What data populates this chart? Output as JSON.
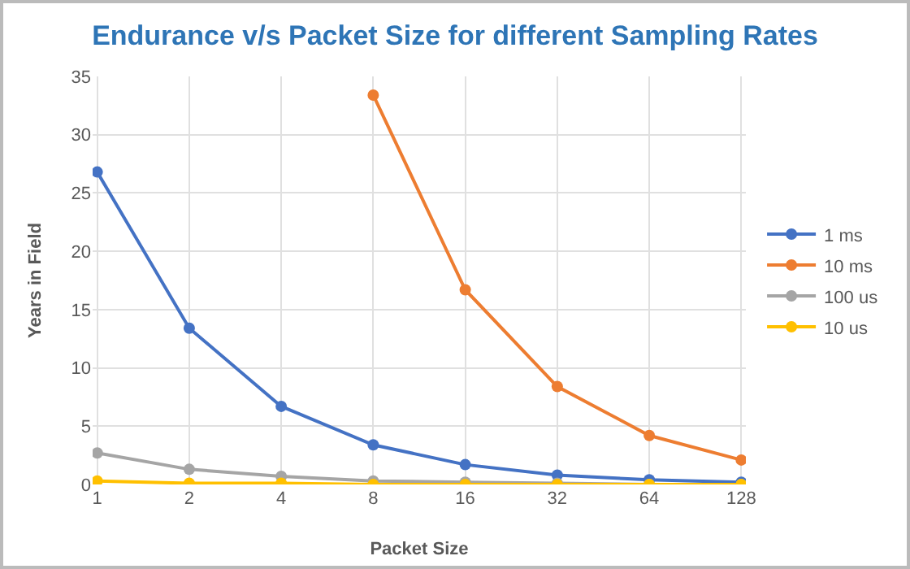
{
  "chart_data": {
    "type": "line",
    "title": "Endurance v/s Packet Size for different Sampling Rates",
    "xlabel": "Packet Size",
    "ylabel": "Years in Field",
    "categories": [
      "1",
      "2",
      "4",
      "8",
      "16",
      "32",
      "64",
      "128"
    ],
    "series": [
      {
        "name": "1 ms",
        "color": "#4472c4",
        "values": [
          26.8,
          13.4,
          6.7,
          3.4,
          1.7,
          0.8,
          0.4,
          0.2
        ]
      },
      {
        "name": "10 ms",
        "color": "#ed7d31",
        "values": [
          null,
          null,
          null,
          33.4,
          16.7,
          8.4,
          4.2,
          2.1
        ]
      },
      {
        "name": "100 us",
        "color": "#a5a5a5",
        "values": [
          2.7,
          1.3,
          0.7,
          0.3,
          0.2,
          0.1,
          0.0,
          0.0
        ]
      },
      {
        "name": "10 us",
        "color": "#ffc000",
        "values": [
          0.3,
          0.1,
          0.1,
          0.0,
          0.0,
          0.0,
          0.0,
          0.0
        ]
      }
    ],
    "ylim": [
      0,
      35
    ],
    "yticks": [
      0,
      5,
      10,
      15,
      20,
      25,
      30,
      35
    ],
    "grid": true,
    "legend": "right",
    "marker": "circle",
    "line_style": "solid"
  }
}
